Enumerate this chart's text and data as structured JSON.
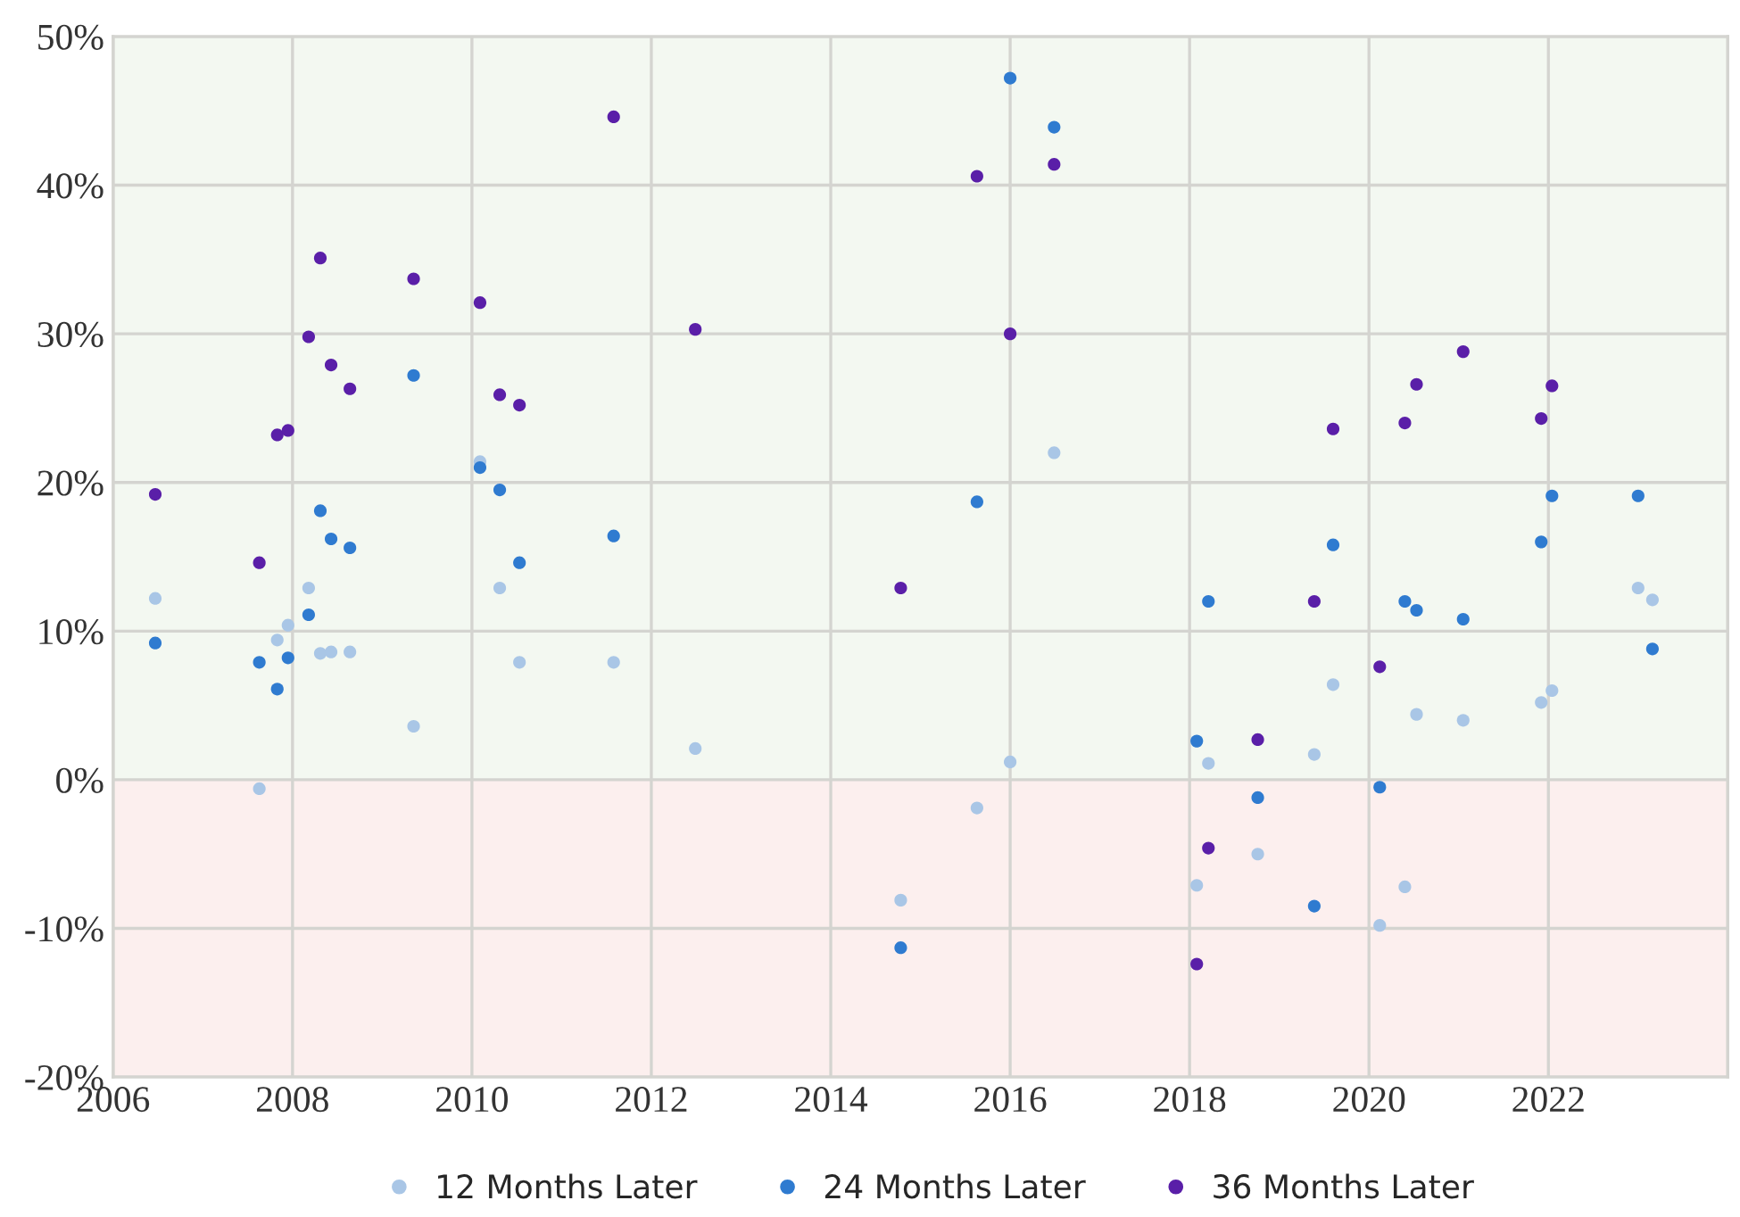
{
  "chart_data": {
    "type": "scatter",
    "series": [
      {
        "name": "12 Months Later",
        "color": "#a9c6e6",
        "x": [
          2006.47,
          2007.63,
          2007.83,
          2007.95,
          2008.18,
          2008.31,
          2008.43,
          2008.64,
          2009.35,
          2010.09,
          2010.31,
          2010.53,
          2011.58,
          2012.49,
          2014.78,
          2015.63,
          2016.0,
          2016.49,
          2018.08,
          2018.21,
          2018.76,
          2019.39,
          2019.6,
          2020.12,
          2020.4,
          2020.53,
          2021.05,
          2021.92,
          2022.04,
          2023.0,
          2023.16
        ],
        "values": [
          12.2,
          -0.6,
          9.4,
          10.4,
          12.9,
          8.5,
          8.6,
          8.6,
          3.6,
          21.4,
          12.9,
          7.9,
          7.9,
          2.1,
          -8.1,
          -1.9,
          1.2,
          22.0,
          -7.1,
          1.1,
          -5.0,
          1.7,
          6.4,
          -9.8,
          -7.2,
          4.4,
          4.0,
          5.2,
          6.0,
          12.9,
          12.1
        ]
      },
      {
        "name": "24 Months Later",
        "color": "#2f7bd0",
        "x": [
          2006.47,
          2007.63,
          2007.83,
          2007.95,
          2008.18,
          2008.31,
          2008.43,
          2008.64,
          2009.35,
          2010.09,
          2010.31,
          2010.53,
          2011.58,
          2014.78,
          2015.63,
          2016.0,
          2016.49,
          2018.08,
          2018.21,
          2018.76,
          2019.39,
          2019.6,
          2020.12,
          2020.4,
          2020.53,
          2021.05,
          2021.92,
          2022.04,
          2023.0,
          2023.16
        ],
        "values": [
          9.2,
          7.9,
          6.1,
          8.2,
          11.1,
          18.1,
          16.2,
          15.6,
          27.2,
          21.0,
          19.5,
          14.6,
          16.4,
          -11.3,
          18.7,
          47.2,
          43.9,
          2.6,
          12.0,
          -1.2,
          -8.5,
          15.8,
          -0.5,
          12.0,
          11.4,
          10.8,
          16.0,
          19.1,
          19.1,
          8.8
        ]
      },
      {
        "name": "36 Months Later",
        "color": "#5a1fa8",
        "x": [
          2006.47,
          2007.63,
          2007.83,
          2007.95,
          2008.18,
          2008.31,
          2008.43,
          2008.64,
          2009.35,
          2010.09,
          2010.31,
          2010.53,
          2011.58,
          2012.49,
          2014.78,
          2015.63,
          2016.0,
          2016.49,
          2018.08,
          2018.21,
          2018.76,
          2019.39,
          2019.6,
          2020.12,
          2020.4,
          2020.53,
          2021.05,
          2021.92,
          2022.04
        ],
        "values": [
          19.2,
          14.6,
          23.2,
          23.5,
          29.8,
          35.1,
          27.9,
          26.3,
          33.7,
          32.1,
          25.9,
          25.2,
          44.6,
          30.3,
          12.9,
          40.6,
          30.0,
          41.4,
          -12.4,
          -4.6,
          2.7,
          12.0,
          23.6,
          7.6,
          24.0,
          26.6,
          28.8,
          24.3,
          26.5
        ]
      }
    ],
    "xlim": [
      2006,
      2024
    ],
    "xticks": [
      2006,
      2008,
      2010,
      2012,
      2014,
      2016,
      2018,
      2020,
      2022,
      {
        "value": 2024,
        "label": null
      }
    ],
    "ylim": [
      -20,
      50
    ],
    "yticks": [
      {
        "value": -20,
        "label": "-20%"
      },
      {
        "value": -10,
        "label": "-10%"
      },
      {
        "value": 0,
        "label": "0%"
      },
      {
        "value": 10,
        "label": "10%"
      },
      {
        "value": 20,
        "label": "20%"
      },
      {
        "value": 30,
        "label": "30%"
      },
      {
        "value": 40,
        "label": "40%"
      },
      {
        "value": 50,
        "label": "50%"
      }
    ],
    "bands": [
      {
        "axis": "y",
        "from": 0,
        "to": 50,
        "color": "#f3f8f1"
      },
      {
        "axis": "y",
        "from": -20,
        "to": 0,
        "color": "#fcefee"
      }
    ],
    "grid": true,
    "legend": "bottom",
    "marker": "circle"
  }
}
